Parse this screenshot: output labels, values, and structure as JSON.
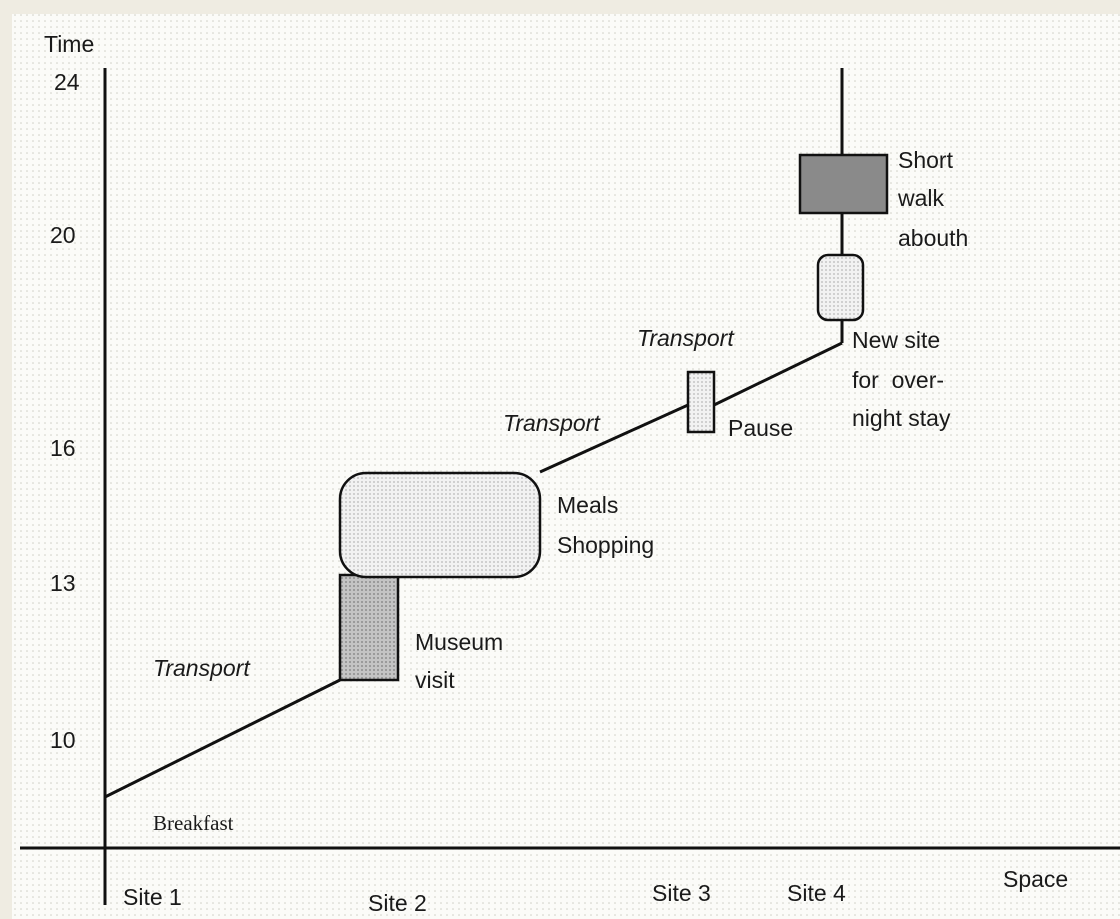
{
  "axes": {
    "y_label": "Time",
    "x_label": "Space",
    "y_ticks": [
      "24",
      "20",
      "16",
      "13",
      "10"
    ]
  },
  "sites": [
    "Site 1",
    "Site 2",
    "Site 3",
    "Site  4"
  ],
  "activities": {
    "breakfast": "Breakfast",
    "museum": [
      "Museum",
      "visit"
    ],
    "meals": [
      "Meals",
      "Shopping"
    ],
    "pause": "Pause",
    "new_site": [
      "New site",
      "for  over-",
      "night stay"
    ],
    "walk": [
      "Short",
      "walk",
      "abouth"
    ]
  },
  "transport": [
    "Transport",
    "Transport",
    "Transport"
  ]
}
